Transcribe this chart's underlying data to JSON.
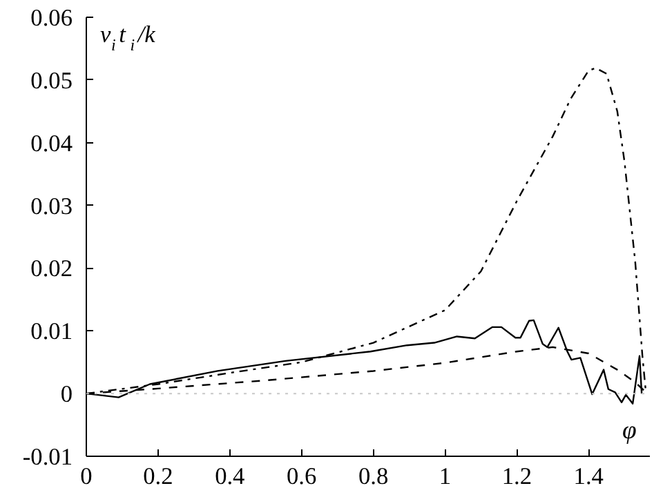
{
  "chart_data": {
    "type": "line",
    "ylabel": "v$_{i}$t$_{i}$/k",
    "xlabel": "φ",
    "xlim": [
      0,
      1.5708
    ],
    "ylim": [
      -0.01,
      0.06
    ],
    "xticks": [
      0,
      0.2,
      0.4,
      0.6,
      0.8,
      1,
      1.2,
      1.4
    ],
    "yticks": [
      -0.01,
      0,
      0.01,
      0.02,
      0.03,
      0.04,
      0.05,
      0.06
    ],
    "grid": false,
    "ref_lines": [
      {
        "axis": "y",
        "value": 0,
        "color": "#c8c8c8",
        "line_style": "dotted"
      }
    ],
    "series": [
      {
        "color": "#000000",
        "line_style": "solid",
        "x": [
          0,
          0.09,
          0.177,
          0.366,
          0.555,
          0.792,
          0.894,
          0.97,
          1.033,
          1.083,
          1.132,
          1.157,
          1.196,
          1.21,
          1.234,
          1.247,
          1.272,
          1.285,
          1.316,
          1.34,
          1.352,
          1.377,
          1.41,
          1.442,
          1.455,
          1.474,
          1.492,
          1.504,
          1.523,
          1.542,
          1.548
        ],
        "values": [
          0,
          -0.0006,
          0.0015,
          0.0036,
          0.0052,
          0.0067,
          0.0077,
          0.0081,
          0.0091,
          0.0088,
          0.0106,
          0.0106,
          0.0089,
          0.0089,
          0.0116,
          0.0117,
          0.0079,
          0.0074,
          0.0105,
          0.0068,
          0.0054,
          0.0057,
          -0.0001,
          0.0038,
          0.0007,
          0.0002,
          -0.0014,
          -0.0002,
          -0.0016,
          0.006,
          0
        ]
      },
      {
        "color": "#000000",
        "line_style": "dashed",
        "x": [
          0,
          0.2,
          0.5,
          0.8,
          1.0,
          1.2,
          1.3,
          1.4,
          1.48,
          1.53,
          1.56
        ],
        "values": [
          0,
          0.0008,
          0.0021,
          0.0036,
          0.0049,
          0.0067,
          0.0074,
          0.0064,
          0.0038,
          0.0018,
          0.0002
        ]
      },
      {
        "color": "#000000",
        "line_style": "dashdot",
        "x": [
          0,
          0.2,
          0.4,
          0.6,
          0.8,
          1.0,
          1.1,
          1.2,
          1.3,
          1.35,
          1.4,
          1.42,
          1.45,
          1.48,
          1.5,
          1.53,
          1.55,
          1.56
        ],
        "values": [
          0,
          0.0015,
          0.0033,
          0.005,
          0.0081,
          0.0133,
          0.0195,
          0.0307,
          0.041,
          0.047,
          0.0515,
          0.0519,
          0.051,
          0.045,
          0.037,
          0.021,
          0.006,
          0
        ]
      }
    ]
  }
}
